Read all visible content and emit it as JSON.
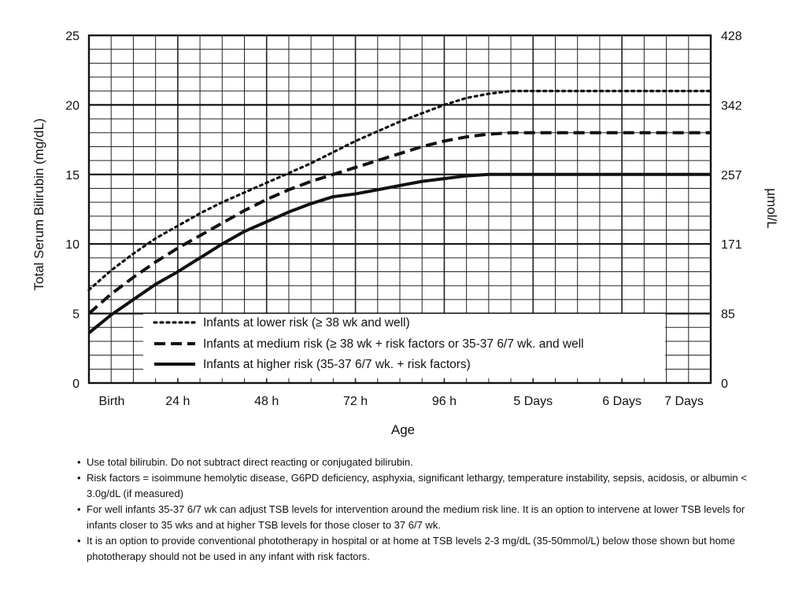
{
  "chart_data": {
    "type": "line",
    "xlabel": "Age",
    "ylabel": "Total Serum Bilirubin (mg/dL)",
    "y2label": "µmol/L",
    "xlim": [
      0,
      168
    ],
    "ylim": [
      0,
      25
    ],
    "x_ticks": [
      {
        "x": 0,
        "label": "Birth"
      },
      {
        "x": 24,
        "label": "24 h"
      },
      {
        "x": 48,
        "label": "48 h"
      },
      {
        "x": 72,
        "label": "72 h"
      },
      {
        "x": 96,
        "label": "96 h"
      },
      {
        "x": 120,
        "label": "5 Days"
      },
      {
        "x": 144,
        "label": "6 Days"
      },
      {
        "x": 168,
        "label": "7 Days"
      }
    ],
    "y_ticks": [
      0,
      5,
      10,
      15,
      20,
      25
    ],
    "y2_ticks": [
      {
        "y": 0,
        "label": "0"
      },
      {
        "y": 5,
        "label": "85"
      },
      {
        "y": 10,
        "label": "171"
      },
      {
        "y": 15,
        "label": "257"
      },
      {
        "y": 20,
        "label": "342"
      },
      {
        "y": 25,
        "label": "428"
      }
    ],
    "grid": true,
    "legend_position": "bottom",
    "series": [
      {
        "name": "Infants at lower risk (≥ 38 wk and well)",
        "style": "dotted",
        "x": [
          0,
          6,
          12,
          18,
          24,
          30,
          36,
          42,
          48,
          54,
          60,
          66,
          72,
          78,
          84,
          90,
          96,
          102,
          108,
          114,
          120,
          132,
          144,
          156,
          168
        ],
        "y": [
          6.7,
          8.1,
          9.3,
          10.4,
          11.3,
          12.2,
          13.0,
          13.7,
          14.4,
          15.1,
          15.8,
          16.6,
          17.4,
          18.1,
          18.8,
          19.4,
          20.0,
          20.5,
          20.8,
          21.0,
          21.0,
          21.0,
          21.0,
          21.0,
          21.0
        ]
      },
      {
        "name": "Infants at medium risk (≥ 38 wk + risk factors or 35-37 6/7 wk. and well",
        "style": "dashed",
        "x": [
          0,
          6,
          12,
          18,
          24,
          30,
          36,
          42,
          48,
          54,
          60,
          66,
          72,
          78,
          84,
          90,
          96,
          102,
          108,
          114,
          120,
          132,
          144,
          156,
          168
        ],
        "y": [
          5.0,
          6.4,
          7.6,
          8.7,
          9.7,
          10.6,
          11.5,
          12.4,
          13.2,
          13.9,
          14.5,
          15.0,
          15.5,
          16.0,
          16.5,
          17.0,
          17.4,
          17.7,
          17.9,
          18.0,
          18.0,
          18.0,
          18.0,
          18.0,
          18.0
        ]
      },
      {
        "name": "Infants at higher risk (35-37 6/7 wk. + risk factors)",
        "style": "solid",
        "x": [
          0,
          6,
          12,
          18,
          24,
          30,
          36,
          42,
          48,
          54,
          60,
          66,
          72,
          78,
          84,
          90,
          96,
          102,
          108,
          114,
          120,
          132,
          144,
          156,
          168
        ],
        "y": [
          3.6,
          4.9,
          6.0,
          7.1,
          8.0,
          9.0,
          10.0,
          10.9,
          11.6,
          12.3,
          12.9,
          13.4,
          13.6,
          13.9,
          14.2,
          14.5,
          14.7,
          14.9,
          15.0,
          15.0,
          15.0,
          15.0,
          15.0,
          15.0,
          15.0
        ]
      }
    ]
  },
  "notes": [
    "Use total bilirubin.  Do not subtract direct reacting or conjugated bilirubin.",
    "Risk factors = isoimmune hemolytic disease, G6PD deficiency, asphyxia, significant lethargy, temperature instability, sepsis, acidosis, or albumin < 3.0g/dL (if measured)",
    "For well infants 35-37 6/7 wk can adjust TSB levels for intervention around the medium risk line.  It is an option to intervene at lower TSB levels for infants closer to 35 wks and at higher TSB levels for those closer to 37 6/7 wk.",
    "It is an option to provide conventional phototherapy in hospital or at home at TSB levels 2-3 mg/dL (35-50mmol/L) below those shown but home phototherapy should not be used in any infant with risk factors."
  ]
}
